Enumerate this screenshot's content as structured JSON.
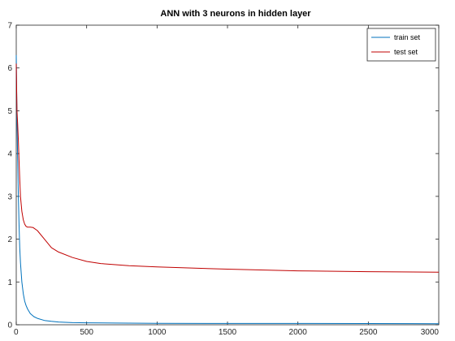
{
  "chart_data": {
    "type": "line",
    "title": "ANN with 3 neurons in hidden layer",
    "xlabel": "",
    "ylabel": "",
    "xlim": [
      0,
      3000
    ],
    "ylim": [
      0,
      7
    ],
    "xticks": [
      0,
      500,
      1000,
      1500,
      2000,
      2500,
      3000
    ],
    "yticks": [
      0,
      1,
      2,
      3,
      4,
      5,
      6,
      7
    ],
    "grid": false,
    "legend_position": "top-right",
    "series": [
      {
        "name": "train set",
        "color": "#0072bd",
        "x": [
          0,
          5,
          10,
          15,
          20,
          25,
          30,
          40,
          50,
          60,
          70,
          80,
          100,
          125,
          150,
          200,
          250,
          300,
          400,
          500,
          700,
          1000,
          1500,
          2000,
          2500,
          3000
        ],
        "y": [
          6.3,
          4.8,
          3.9,
          3.0,
          2.3,
          1.8,
          1.45,
          1.0,
          0.72,
          0.55,
          0.45,
          0.37,
          0.26,
          0.19,
          0.15,
          0.1,
          0.08,
          0.065,
          0.05,
          0.045,
          0.04,
          0.035,
          0.03,
          0.03,
          0.028,
          0.025
        ]
      },
      {
        "name": "test set",
        "color": "#c00000",
        "x": [
          0,
          5,
          10,
          15,
          20,
          25,
          30,
          40,
          50,
          60,
          70,
          80,
          100,
          120,
          150,
          200,
          250,
          300,
          400,
          500,
          600,
          800,
          1000,
          1500,
          2000,
          2500,
          3000
        ],
        "y": [
          6.1,
          5.0,
          4.7,
          4.3,
          3.8,
          3.4,
          3.0,
          2.65,
          2.45,
          2.35,
          2.3,
          2.28,
          2.28,
          2.27,
          2.2,
          2.0,
          1.8,
          1.7,
          1.57,
          1.48,
          1.43,
          1.38,
          1.35,
          1.3,
          1.26,
          1.24,
          1.23
        ]
      }
    ]
  }
}
